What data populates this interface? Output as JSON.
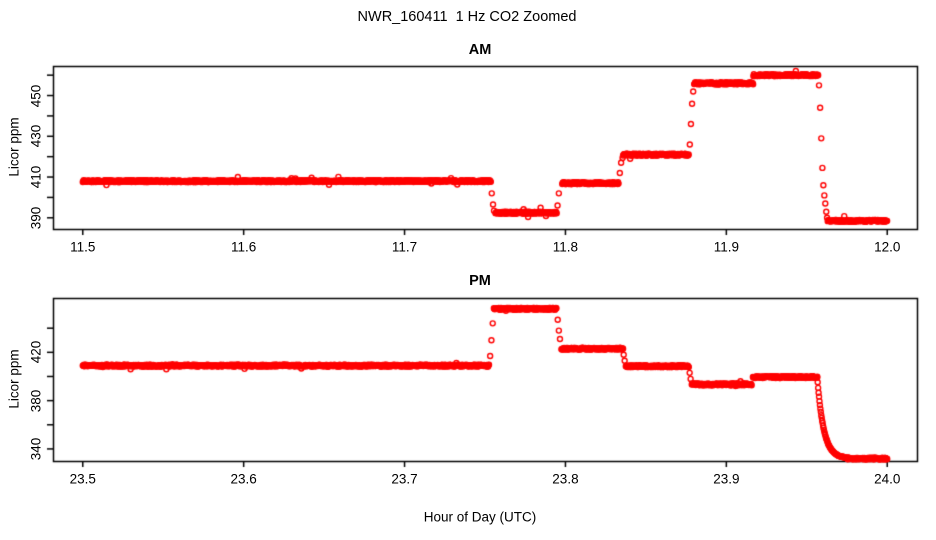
{
  "figure": {
    "title": "NWR_160411  1 Hz CO2 Zoomed",
    "xlabel": "Hour of Day (UTC)",
    "point_color": "#FF0000",
    "axis_color": "#000000",
    "background": "#FFFFFF"
  },
  "chart_data": [
    {
      "type": "scatter",
      "title": "AM",
      "ylabel": "Licor ppm",
      "marker": "open-circle",
      "sample_rate_hz": 1,
      "grid": false,
      "legend": "none",
      "xlim": [
        11.4815,
        12.0185
      ],
      "ylim": [
        384.5,
        464.5
      ],
      "xticks": [
        11.5,
        11.6,
        11.7,
        11.8,
        11.9,
        12.0
      ],
      "xtick_labels": [
        "11.5",
        "11.6",
        "11.7",
        "11.8",
        "11.9",
        "12.0"
      ],
      "yticks": [
        390,
        400,
        410,
        420,
        430,
        440,
        450,
        460
      ],
      "ytick_labels": [
        "390",
        "",
        "410",
        "",
        "430",
        "",
        "450",
        ""
      ],
      "noise_ppm": 0.5,
      "segments": [
        {
          "t0": 11.5,
          "t1": 11.7535,
          "v": 408
        },
        {
          "t0": 11.7565,
          "t1": 11.7945,
          "v": 392.5
        },
        {
          "t0": 11.798,
          "t1": 11.833,
          "v": 407
        },
        {
          "t0": 11.8355,
          "t1": 11.8765,
          "v": 421
        },
        {
          "t0": 11.88,
          "t1": 11.9168,
          "v": 456
        },
        {
          "t0": 11.9168,
          "t1": 11.957,
          "v": 460
        },
        {
          "t0": 11.963,
          "t1": 12.0,
          "v": 388.5
        }
      ],
      "transition_points": [
        [
          11.7542,
          402
        ],
        [
          11.755,
          396.5
        ],
        [
          11.7556,
          393.5
        ],
        [
          11.7951,
          396
        ],
        [
          11.7959,
          402
        ],
        [
          11.8338,
          412
        ],
        [
          11.8346,
          417
        ],
        [
          11.8773,
          426
        ],
        [
          11.878,
          436
        ],
        [
          11.8787,
          446
        ],
        [
          11.8794,
          452
        ],
        [
          11.9576,
          455
        ],
        [
          11.9583,
          444
        ],
        [
          11.959,
          429
        ],
        [
          11.9597,
          414.5
        ],
        [
          11.9603,
          406
        ],
        [
          11.9609,
          401
        ],
        [
          11.9615,
          397
        ],
        [
          11.9621,
          393
        ],
        [
          11.9626,
          390
        ]
      ]
    },
    {
      "type": "scatter",
      "title": "PM",
      "ylabel": "Licor ppm",
      "marker": "open-circle",
      "sample_rate_hz": 1,
      "grid": false,
      "legend": "none",
      "xlim": [
        23.4815,
        24.0185
      ],
      "ylim": [
        330,
        465
      ],
      "xticks": [
        23.5,
        23.6,
        23.7,
        23.8,
        23.9,
        24.0
      ],
      "xtick_labels": [
        "23.5",
        "23.6",
        "23.7",
        "23.8",
        "23.9",
        "24.0"
      ],
      "yticks": [
        340,
        360,
        380,
        400,
        420,
        440
      ],
      "ytick_labels": [
        "340",
        "",
        "380",
        "",
        "420",
        ""
      ],
      "noise_ppm": 0.8,
      "segments": [
        {
          "t0": 23.5,
          "t1": 23.7525,
          "v": 409
        },
        {
          "t0": 23.7555,
          "t1": 23.7945,
          "v": 456
        },
        {
          "t0": 23.7975,
          "t1": 23.8358,
          "v": 423
        },
        {
          "t0": 23.8375,
          "t1": 23.8768,
          "v": 408.5
        },
        {
          "t0": 23.8785,
          "t1": 23.9158,
          "v": 393.5
        },
        {
          "t0": 23.9165,
          "t1": 23.9565,
          "v": 399.5
        },
        {
          "t0": 23.975,
          "t1": 24.0,
          "v": 332
        }
      ],
      "transition_points": [
        [
          23.7532,
          417
        ],
        [
          23.754,
          430
        ],
        [
          23.7548,
          444
        ],
        [
          23.7952,
          447
        ],
        [
          23.7959,
          438
        ],
        [
          23.7966,
          431
        ],
        [
          23.8362,
          418
        ],
        [
          23.8368,
          413
        ],
        [
          23.8772,
          403
        ],
        [
          23.8778,
          398
        ]
      ],
      "decay": {
        "t0": 23.9565,
        "t1": 23.975,
        "from": 399.5,
        "floor": 332,
        "tau": 0.004
      }
    }
  ]
}
